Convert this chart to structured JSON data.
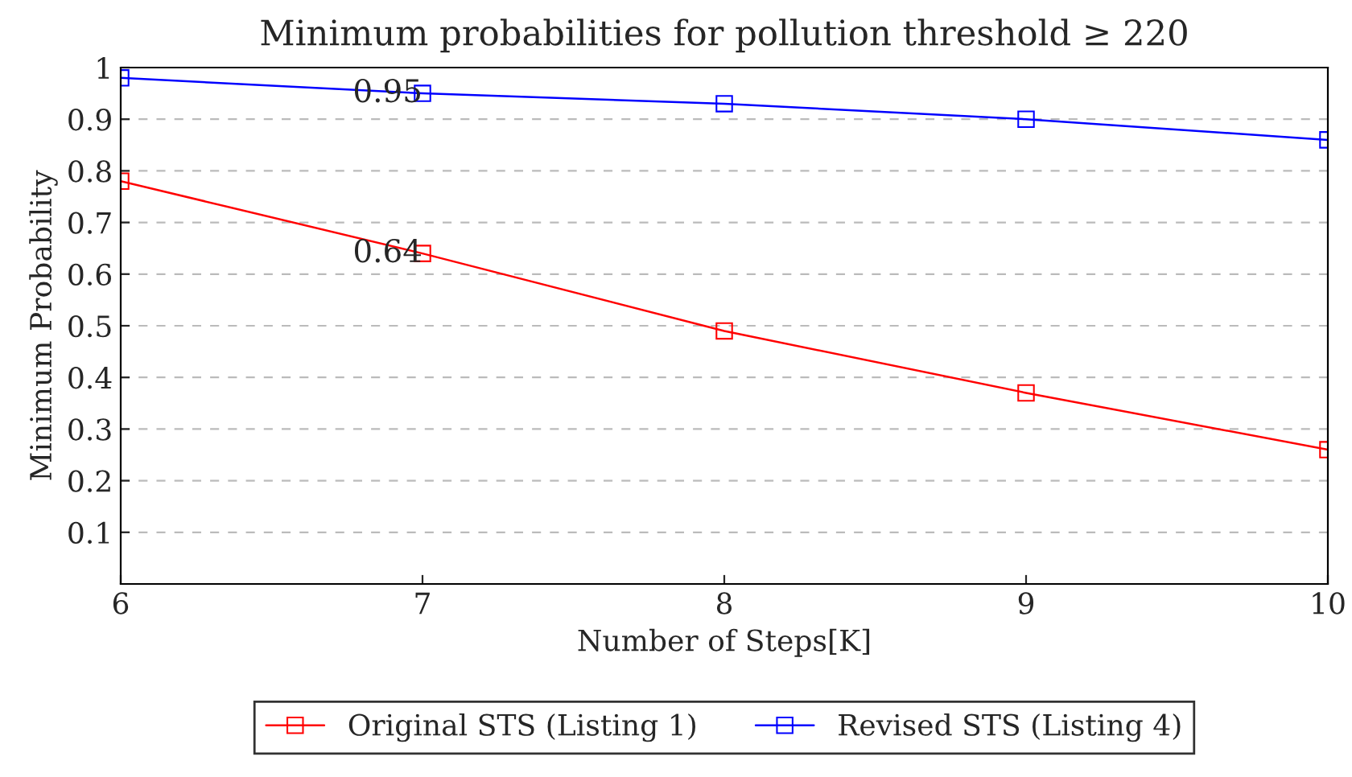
{
  "chart_data": {
    "type": "line",
    "title": "Minimum probabilities for pollution threshold ≥ 220",
    "xlabel": "Number of Steps[K]",
    "ylabel": "Minimum Probability",
    "x": [
      6,
      7,
      8,
      9,
      10
    ],
    "series": [
      {
        "name": "Original STS (Listing 1)",
        "color": "#ff0000",
        "values": [
          0.78,
          0.64,
          0.49,
          0.37,
          0.26
        ]
      },
      {
        "name": "Revised STS (Listing 4)",
        "color": "#0000ff",
        "values": [
          0.98,
          0.95,
          0.93,
          0.9,
          0.86
        ]
      }
    ],
    "annotations": [
      {
        "text": "0.95",
        "x": 7,
        "y": 0.95
      },
      {
        "text": "0.64",
        "x": 7,
        "y": 0.64
      }
    ],
    "xlim": [
      6,
      10
    ],
    "xticks": [
      6,
      7,
      8,
      9,
      10
    ],
    "ylim": [
      0,
      1
    ],
    "yticks": [
      0.1,
      0.2,
      0.3,
      0.4,
      0.5,
      0.6,
      0.7,
      0.8,
      0.9,
      1
    ],
    "grid": "y",
    "legend": "bottom",
    "marker": "square",
    "line_style": "solid"
  }
}
